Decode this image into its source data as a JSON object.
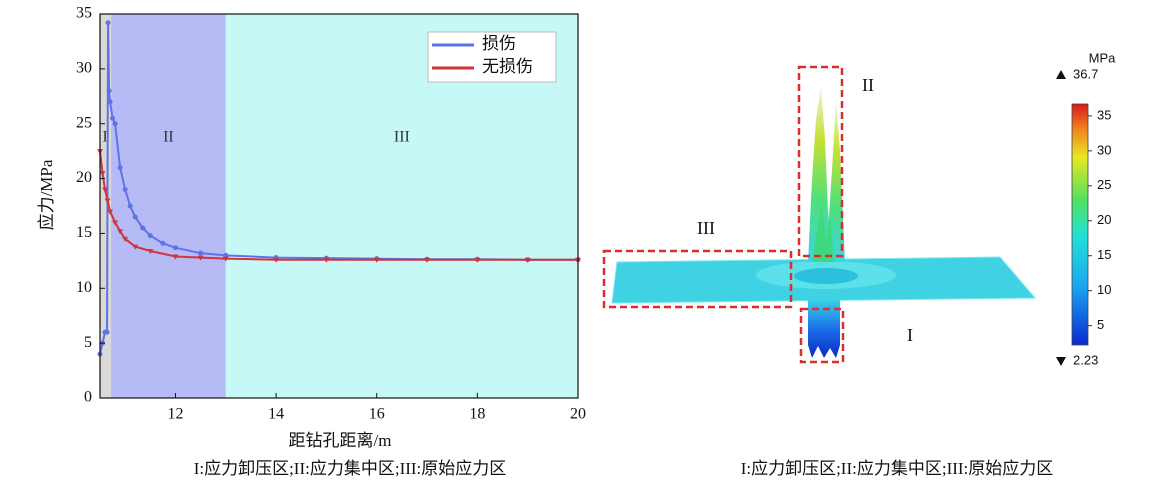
{
  "chart_data": [
    {
      "type": "line",
      "xlabel": "距钻孔距离/m",
      "ylabel": "应力/MPa",
      "caption": "I:应力卸压区;II:应力集中区;III:原始应力区",
      "xlim": [
        10.5,
        20
      ],
      "xticks": [
        12,
        14,
        16,
        18,
        20
      ],
      "ylim": [
        0,
        35
      ],
      "yticks": [
        0,
        5,
        10,
        15,
        20,
        25,
        30,
        35
      ],
      "legend": "upper right",
      "regions": [
        {
          "label": "I",
          "range": [
            10.5,
            10.72
          ],
          "color": "#d9d9d9"
        },
        {
          "label": "II",
          "range": [
            10.72,
            13
          ],
          "color": "#b6baf5"
        },
        {
          "label": "III",
          "range": [
            13,
            20
          ],
          "color": "#c6f9f6"
        }
      ],
      "series": [
        {
          "name": "损伤",
          "color": "#5f73e6",
          "marker": "circle",
          "x": [
            10.5,
            10.55,
            10.6,
            10.64,
            10.66,
            10.68,
            10.7,
            10.75,
            10.8,
            10.9,
            11.0,
            11.1,
            11.2,
            11.35,
            11.5,
            11.75,
            12.0,
            12.5,
            13.0,
            14.0,
            15.0,
            16.0,
            17.0,
            18.0,
            19.0,
            20.0
          ],
          "values": [
            4,
            5,
            6,
            6,
            34.2,
            28,
            27,
            25.5,
            25,
            21,
            19,
            17.5,
            16.5,
            15.5,
            14.8,
            14.1,
            13.7,
            13.2,
            13.0,
            12.8,
            12.75,
            12.7,
            12.65,
            12.65,
            12.6,
            12.6
          ]
        },
        {
          "name": "无损伤",
          "color": "#d0343f",
          "marker": "triangle",
          "x": [
            10.5,
            10.55,
            10.6,
            10.65,
            10.7,
            10.8,
            10.9,
            11.0,
            11.2,
            11.5,
            12.0,
            12.5,
            13.0,
            14.0,
            15.0,
            16.0,
            17.0,
            18.0,
            19.0,
            20.0
          ],
          "values": [
            22.5,
            20.5,
            19,
            18,
            17,
            16,
            15.2,
            14.5,
            13.8,
            13.4,
            12.9,
            12.8,
            12.7,
            12.6,
            12.6,
            12.6,
            12.6,
            12.6,
            12.6,
            12.6
          ]
        }
      ]
    },
    {
      "type": "surface",
      "caption": "I:应力卸压区;II:应力集中区;III:原始应力区",
      "region_labels": [
        "I",
        "II",
        "III"
      ],
      "colorbar": {
        "unit": "MPa",
        "max": 36.7,
        "min": 2.23,
        "ticks": [
          5,
          10,
          15,
          20,
          25,
          30,
          35
        ]
      }
    }
  ]
}
